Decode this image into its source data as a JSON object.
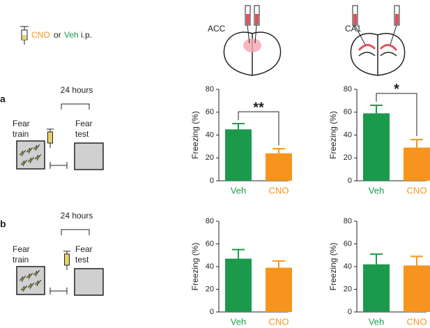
{
  "labels": {
    "cno": "CNO",
    "or": "or",
    "veh": "Veh",
    "ip": "i.p.",
    "acc": "ACC",
    "ca1": "CA1",
    "panel_a": "a",
    "panel_b": "b"
  },
  "protocols": [
    {
      "interval": "24 hours",
      "train_1": "Fear",
      "train_2": "train",
      "test_1": "Fear",
      "test_2": "test"
    },
    {
      "interval": "24 hours",
      "train_1": "Fear",
      "train_2": "train",
      "test_1": "Fear",
      "test_2": "test"
    }
  ],
  "chart_data": [
    {
      "type": "bar",
      "ylabel": "Freezing (%)",
      "categories": [
        "Veh",
        "CNO"
      ],
      "values": [
        45,
        24
      ],
      "errors": [
        5,
        4
      ],
      "colors": [
        "#1b9a4b",
        "#f7941d"
      ],
      "ylim": [
        0,
        80
      ],
      "yticks": [
        0,
        20,
        40,
        60,
        80
      ],
      "annotation": "**"
    },
    {
      "type": "bar",
      "ylabel": "Freezing (%)",
      "categories": [
        "Veh",
        "CNO"
      ],
      "values": [
        59,
        29
      ],
      "errors": [
        7,
        7
      ],
      "colors": [
        "#1b9a4b",
        "#f7941d"
      ],
      "ylim": [
        0,
        80
      ],
      "yticks": [
        0,
        20,
        40,
        60,
        80
      ],
      "annotation": "*"
    },
    {
      "type": "bar",
      "ylabel": "Freezing (%)",
      "categories": [
        "Veh",
        "CNO"
      ],
      "values": [
        47,
        39
      ],
      "errors": [
        8,
        6
      ],
      "colors": [
        "#1b9a4b",
        "#f7941d"
      ],
      "ylim": [
        0,
        80
      ],
      "yticks": [
        0,
        20,
        40,
        60,
        80
      ]
    },
    {
      "type": "bar",
      "ylabel": "Freezing (%)",
      "categories": [
        "Veh",
        "CNO"
      ],
      "values": [
        42,
        41
      ],
      "errors": [
        9,
        8
      ],
      "colors": [
        "#1b9a4b",
        "#f7941d"
      ],
      "ylim": [
        0,
        80
      ],
      "yticks": [
        0,
        20,
        40,
        60,
        80
      ]
    }
  ]
}
